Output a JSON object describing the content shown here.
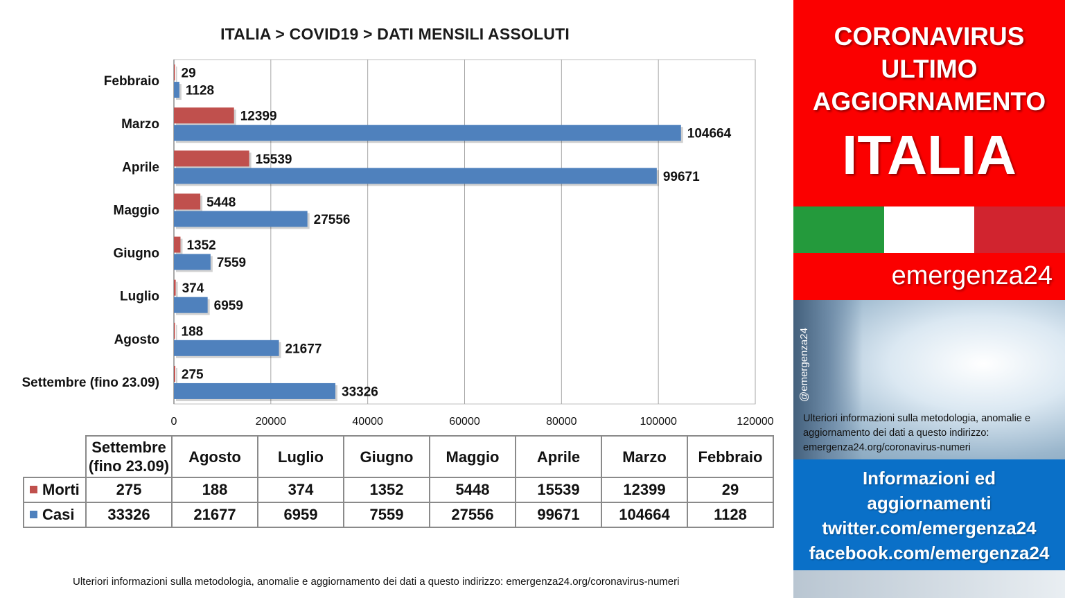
{
  "chart_data": {
    "type": "bar",
    "orientation": "horizontal",
    "title": "ITALIA >  COVID19 > DATI MENSILI  ASSOLUTI",
    "categories": [
      "Febbraio",
      "Marzo",
      "Aprile",
      "Maggio",
      "Giugno",
      "Luglio",
      "Agosto",
      "Settembre (fino 23.09)"
    ],
    "series": [
      {
        "name": "Morti",
        "color": "#c0504d",
        "values": [
          29,
          12399,
          15539,
          5448,
          1352,
          374,
          188,
          275
        ]
      },
      {
        "name": "Casi",
        "color": "#4f81bd",
        "values": [
          1128,
          104664,
          99671,
          27556,
          7559,
          6959,
          21677,
          33326
        ]
      }
    ],
    "xlim": [
      0,
      120000
    ],
    "xticks": [
      0,
      20000,
      40000,
      60000,
      80000,
      100000,
      120000
    ],
    "grid": true,
    "legend": "table below chart"
  },
  "table": {
    "columns": [
      "Settembre\n(fino 23.09)",
      "Agosto",
      "Luglio",
      "Giugno",
      "Maggio",
      "Aprile",
      "Marzo",
      "Febbraio"
    ],
    "rows": [
      {
        "label": "Morti",
        "color": "#c0504d",
        "values": [
          "275",
          "188",
          "374",
          "1352",
          "5448",
          "15539",
          "12399",
          "29"
        ]
      },
      {
        "label": "Casi",
        "color": "#4f81bd",
        "values": [
          "33326",
          "21677",
          "6959",
          "7559",
          "27556",
          "99671",
          "104664",
          "1128"
        ]
      }
    ]
  },
  "footnote": "Ulteriori informazioni sulla metodologia, anomalie e aggiornamento dei dati a questo indirizzo: emergenza24.org/coronavirus-numeri",
  "side": {
    "headline": [
      "CORONAVIRUS",
      "ULTIMO",
      "AGGIORNAMENTO"
    ],
    "country": "ITALIA",
    "brand": "emergenza24",
    "handle": "@emergenza24",
    "note": "Ulteriori informazioni sulla metodologia, anomalie e aggiornamento dei dati a questo indirizzo: emergenza24.org/coronavirus-numeri",
    "info_lines": [
      "Informazioni ed",
      "aggiornamenti",
      "twitter.com/emergenza24",
      "facebook.com/emergenza24"
    ],
    "colors": {
      "red": "#fb0000",
      "blue": "#0a70c8",
      "flag_green": "#249a3c",
      "flag_white": "#ffffff",
      "flag_red": "#d1242f"
    }
  }
}
